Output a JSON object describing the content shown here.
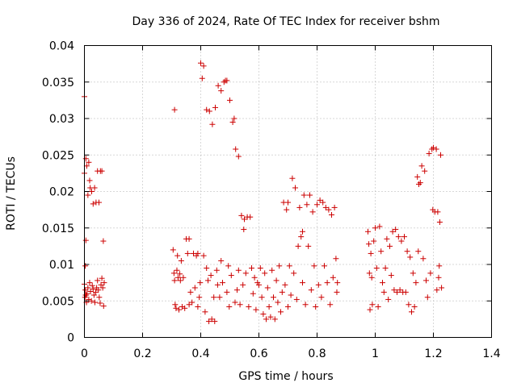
{
  "chart_data": {
    "type": "scatter",
    "title": "Day 336 of 2024, Rate Of TEC Index for receiver bshm",
    "xlabel": "GPS time / hours",
    "ylabel": "ROTI / TECUs",
    "xlim": [
      0,
      1.4
    ],
    "ylim": [
      0,
      0.04
    ],
    "x_ticks": [
      0,
      0.2,
      0.4,
      0.6,
      0.8,
      1,
      1.2,
      1.4
    ],
    "x_tick_labels": [
      "0",
      "0.2",
      "0.4",
      "0.6",
      "0.8",
      "1",
      "1.2",
      "1.4"
    ],
    "y_ticks": [
      0,
      0.005,
      0.01,
      0.015,
      0.02,
      0.025,
      0.03,
      0.035,
      0.04
    ],
    "y_tick_labels": [
      "0",
      "0.005",
      "0.01",
      "0.015",
      "0.02",
      "0.025",
      "0.03",
      "0.035",
      "0.04"
    ],
    "grid": true,
    "marker": "+",
    "marker_color": "#cc0000",
    "series": [
      {
        "name": "ROTI",
        "points": [
          [
            0.0,
            0.033
          ],
          [
            0.0,
            0.0225
          ],
          [
            0.005,
            0.0245
          ],
          [
            0.008,
            0.0235
          ],
          [
            0.012,
            0.0195
          ],
          [
            0.015,
            0.024
          ],
          [
            0.018,
            0.0215
          ],
          [
            0.02,
            0.0205
          ],
          [
            0.025,
            0.02
          ],
          [
            0.03,
            0.0183
          ],
          [
            0.035,
            0.0205
          ],
          [
            0.04,
            0.0185
          ],
          [
            0.045,
            0.0228
          ],
          [
            0.05,
            0.0185
          ],
          [
            0.055,
            0.0228
          ],
          [
            0.06,
            0.0228
          ],
          [
            0.065,
            0.0132
          ],
          [
            0.005,
            0.0133
          ],
          [
            0.003,
            0.0098
          ],
          [
            0.0,
            0.0073
          ],
          [
            0.003,
            0.0065
          ],
          [
            0.006,
            0.0058
          ],
          [
            0.009,
            0.006
          ],
          [
            0.012,
            0.0068
          ],
          [
            0.015,
            0.0052
          ],
          [
            0.018,
            0.0075
          ],
          [
            0.021,
            0.0063
          ],
          [
            0.024,
            0.005
          ],
          [
            0.027,
            0.0071
          ],
          [
            0.03,
            0.0066
          ],
          [
            0.033,
            0.0058
          ],
          [
            0.036,
            0.0048
          ],
          [
            0.039,
            0.0062
          ],
          [
            0.042,
            0.0068
          ],
          [
            0.045,
            0.0078
          ],
          [
            0.048,
            0.0065
          ],
          [
            0.051,
            0.0055
          ],
          [
            0.054,
            0.0047
          ],
          [
            0.057,
            0.0072
          ],
          [
            0.06,
            0.0081
          ],
          [
            0.063,
            0.0068
          ],
          [
            0.066,
            0.0043
          ],
          [
            0.068,
            0.0075
          ],
          [
            0.002,
            0.0055
          ],
          [
            0.004,
            0.0058
          ],
          [
            0.007,
            0.0048
          ],
          [
            0.305,
            0.012
          ],
          [
            0.31,
            0.0312
          ],
          [
            0.308,
            0.0088
          ],
          [
            0.31,
            0.0078
          ],
          [
            0.312,
            0.0045
          ],
          [
            0.315,
            0.004
          ],
          [
            0.318,
            0.0092
          ],
          [
            0.32,
            0.0112
          ],
          [
            0.322,
            0.0082
          ],
          [
            0.325,
            0.0038
          ],
          [
            0.328,
            0.0087
          ],
          [
            0.33,
            0.0078
          ],
          [
            0.333,
            0.0105
          ],
          [
            0.336,
            0.0042
          ],
          [
            0.34,
            0.0082
          ],
          [
            0.345,
            0.004
          ],
          [
            0.35,
            0.0135
          ],
          [
            0.355,
            0.0115
          ],
          [
            0.36,
            0.0135
          ],
          [
            0.36,
            0.0045
          ],
          [
            0.365,
            0.0062
          ],
          [
            0.37,
            0.0048
          ],
          [
            0.375,
            0.0115
          ],
          [
            0.38,
            0.0068
          ],
          [
            0.385,
            0.0112
          ],
          [
            0.39,
            0.0042
          ],
          [
            0.39,
            0.0115
          ],
          [
            0.395,
            0.0055
          ],
          [
            0.398,
            0.0075
          ],
          [
            0.4,
            0.0376
          ],
          [
            0.405,
            0.0355
          ],
          [
            0.41,
            0.0372
          ],
          [
            0.41,
            0.0112
          ],
          [
            0.415,
            0.0035
          ],
          [
            0.42,
            0.0312
          ],
          [
            0.42,
            0.0095
          ],
          [
            0.425,
            0.0078
          ],
          [
            0.428,
            0.0022
          ],
          [
            0.43,
            0.031
          ],
          [
            0.435,
            0.0085
          ],
          [
            0.438,
            0.0025
          ],
          [
            0.44,
            0.0292
          ],
          [
            0.445,
            0.0055
          ],
          [
            0.448,
            0.0022
          ],
          [
            0.45,
            0.0315
          ],
          [
            0.455,
            0.0092
          ],
          [
            0.458,
            0.0072
          ],
          [
            0.46,
            0.0345
          ],
          [
            0.465,
            0.0055
          ],
          [
            0.47,
            0.0338
          ],
          [
            0.47,
            0.0105
          ],
          [
            0.475,
            0.0075
          ],
          [
            0.48,
            0.035
          ],
          [
            0.485,
            0.0352
          ],
          [
            0.49,
            0.0352
          ],
          [
            0.49,
            0.0062
          ],
          [
            0.495,
            0.0098
          ],
          [
            0.498,
            0.0042
          ],
          [
            0.5,
            0.0325
          ],
          [
            0.505,
            0.0085
          ],
          [
            0.51,
            0.0295
          ],
          [
            0.515,
            0.03
          ],
          [
            0.518,
            0.0048
          ],
          [
            0.52,
            0.0258
          ],
          [
            0.525,
            0.0065
          ],
          [
            0.53,
            0.0248
          ],
          [
            0.53,
            0.0092
          ],
          [
            0.535,
            0.0045
          ],
          [
            0.54,
            0.0167
          ],
          [
            0.545,
            0.0072
          ],
          [
            0.548,
            0.0148
          ],
          [
            0.55,
            0.0162
          ],
          [
            0.555,
            0.0088
          ],
          [
            0.56,
            0.0165
          ],
          [
            0.565,
            0.0042
          ],
          [
            0.57,
            0.0165
          ],
          [
            0.575,
            0.0095
          ],
          [
            0.58,
            0.006
          ],
          [
            0.585,
            0.0082
          ],
          [
            0.59,
            0.0038
          ],
          [
            0.595,
            0.0075
          ],
          [
            0.6,
            0.0072
          ],
          [
            0.605,
            0.0095
          ],
          [
            0.61,
            0.0055
          ],
          [
            0.615,
            0.0032
          ],
          [
            0.62,
            0.0088
          ],
          [
            0.625,
            0.0025
          ],
          [
            0.63,
            0.0068
          ],
          [
            0.635,
            0.0042
          ],
          [
            0.64,
            0.0028
          ],
          [
            0.645,
            0.0092
          ],
          [
            0.65,
            0.0055
          ],
          [
            0.655,
            0.0025
          ],
          [
            0.66,
            0.0078
          ],
          [
            0.665,
            0.0048
          ],
          [
            0.67,
            0.0098
          ],
          [
            0.675,
            0.0035
          ],
          [
            0.68,
            0.0062
          ],
          [
            0.685,
            0.0185
          ],
          [
            0.69,
            0.0072
          ],
          [
            0.695,
            0.0175
          ],
          [
            0.7,
            0.0185
          ],
          [
            0.7,
            0.0042
          ],
          [
            0.705,
            0.0098
          ],
          [
            0.71,
            0.0058
          ],
          [
            0.715,
            0.0218
          ],
          [
            0.72,
            0.0088
          ],
          [
            0.725,
            0.0205
          ],
          [
            0.73,
            0.0052
          ],
          [
            0.735,
            0.0125
          ],
          [
            0.74,
            0.0178
          ],
          [
            0.745,
            0.0138
          ],
          [
            0.75,
            0.0145
          ],
          [
            0.75,
            0.0075
          ],
          [
            0.755,
            0.0195
          ],
          [
            0.76,
            0.0045
          ],
          [
            0.765,
            0.0182
          ],
          [
            0.77,
            0.0125
          ],
          [
            0.775,
            0.0195
          ],
          [
            0.78,
            0.0065
          ],
          [
            0.785,
            0.0172
          ],
          [
            0.79,
            0.0098
          ],
          [
            0.795,
            0.0042
          ],
          [
            0.8,
            0.0182
          ],
          [
            0.805,
            0.0072
          ],
          [
            0.81,
            0.0188
          ],
          [
            0.815,
            0.0055
          ],
          [
            0.82,
            0.0185
          ],
          [
            0.825,
            0.0098
          ],
          [
            0.83,
            0.0178
          ],
          [
            0.835,
            0.0075
          ],
          [
            0.84,
            0.0175
          ],
          [
            0.845,
            0.0045
          ],
          [
            0.85,
            0.0168
          ],
          [
            0.855,
            0.0082
          ],
          [
            0.86,
            0.0178
          ],
          [
            0.865,
            0.0108
          ],
          [
            0.87,
            0.0075
          ],
          [
            0.868,
            0.0062
          ],
          [
            0.975,
            0.0145
          ],
          [
            0.978,
            0.0128
          ],
          [
            0.98,
            0.0088
          ],
          [
            0.982,
            0.0038
          ],
          [
            0.985,
            0.0115
          ],
          [
            0.988,
            0.0082
          ],
          [
            0.99,
            0.0045
          ],
          [
            0.995,
            0.0132
          ],
          [
            1.0,
            0.015
          ],
          [
            1.005,
            0.0095
          ],
          [
            1.01,
            0.0042
          ],
          [
            1.015,
            0.0152
          ],
          [
            1.02,
            0.0118
          ],
          [
            1.025,
            0.0075
          ],
          [
            1.03,
            0.0062
          ],
          [
            1.035,
            0.0095
          ],
          [
            1.04,
            0.0135
          ],
          [
            1.045,
            0.0052
          ],
          [
            1.05,
            0.0125
          ],
          [
            1.055,
            0.0085
          ],
          [
            1.06,
            0.0145
          ],
          [
            1.065,
            0.0065
          ],
          [
            1.07,
            0.0148
          ],
          [
            1.075,
            0.0062
          ],
          [
            1.08,
            0.0138
          ],
          [
            1.085,
            0.0065
          ],
          [
            1.09,
            0.0132
          ],
          [
            1.095,
            0.0062
          ],
          [
            1.1,
            0.0138
          ],
          [
            1.105,
            0.0062
          ],
          [
            1.11,
            0.0118
          ],
          [
            1.115,
            0.0045
          ],
          [
            1.12,
            0.011
          ],
          [
            1.125,
            0.0035
          ],
          [
            1.13,
            0.0088
          ],
          [
            1.135,
            0.0042
          ],
          [
            1.14,
            0.0075
          ],
          [
            1.145,
            0.022
          ],
          [
            1.148,
            0.0118
          ],
          [
            1.15,
            0.021
          ],
          [
            1.155,
            0.0212
          ],
          [
            1.16,
            0.0235
          ],
          [
            1.165,
            0.0108
          ],
          [
            1.17,
            0.0228
          ],
          [
            1.175,
            0.0078
          ],
          [
            1.18,
            0.0055
          ],
          [
            1.185,
            0.0252
          ],
          [
            1.19,
            0.0088
          ],
          [
            1.195,
            0.0258
          ],
          [
            1.198,
            0.0175
          ],
          [
            1.2,
            0.026
          ],
          [
            1.205,
            0.0172
          ],
          [
            1.21,
            0.0258
          ],
          [
            1.212,
            0.0065
          ],
          [
            1.215,
            0.0172
          ],
          [
            1.218,
            0.0082
          ],
          [
            1.22,
            0.0098
          ],
          [
            1.222,
            0.0158
          ],
          [
            1.225,
            0.025
          ],
          [
            1.228,
            0.0068
          ]
        ]
      }
    ]
  }
}
